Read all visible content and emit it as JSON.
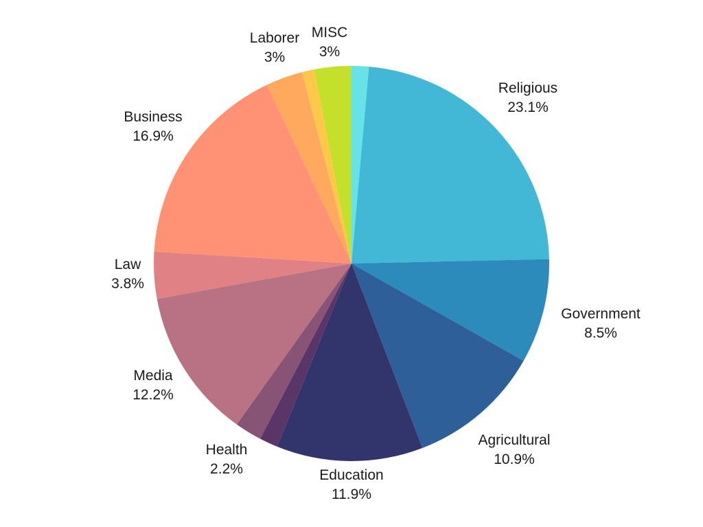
{
  "chart_data": {
    "type": "pie",
    "title": "",
    "start_angle_deg": 0,
    "direction": "clockwise",
    "slices": [
      {
        "label": "",
        "value_text": "",
        "value": 1.4,
        "color": "#67E2E7"
      },
      {
        "label": "Religious",
        "value_text": "23.1%",
        "value": 23.1,
        "color": "#42B7D6"
      },
      {
        "label": "Government",
        "value_text": "8.5%",
        "value": 8.5,
        "color": "#2C8BBA"
      },
      {
        "label": "Agricultural",
        "value_text": "10.9%",
        "value": 10.9,
        "color": "#2F5F99"
      },
      {
        "label": "Education",
        "value_text": "11.9%",
        "value": 11.9,
        "color": "#32356C"
      },
      {
        "label": "",
        "value_text": "",
        "value": 1.5,
        "color": "#5A3567"
      },
      {
        "label": "Health",
        "value_text": "2.2%",
        "value": 2.2,
        "color": "#875475"
      },
      {
        "label": "Media",
        "value_text": "12.2%",
        "value": 12.2,
        "color": "#B87284"
      },
      {
        "label": "Law",
        "value_text": "3.8%",
        "value": 3.8,
        "color": "#E08185"
      },
      {
        "label": "Business",
        "value_text": "16.9%",
        "value": 16.9,
        "color": "#FF9274"
      },
      {
        "label": "Laborer",
        "value_text": "3%",
        "value": 3.0,
        "color": "#FEA95E"
      },
      {
        "label": "",
        "value_text": "",
        "value": 1.0,
        "color": "#FFC84A"
      },
      {
        "label": "MISC",
        "value_text": "3%",
        "value": 3.0,
        "color": "#C4E02A"
      }
    ]
  }
}
